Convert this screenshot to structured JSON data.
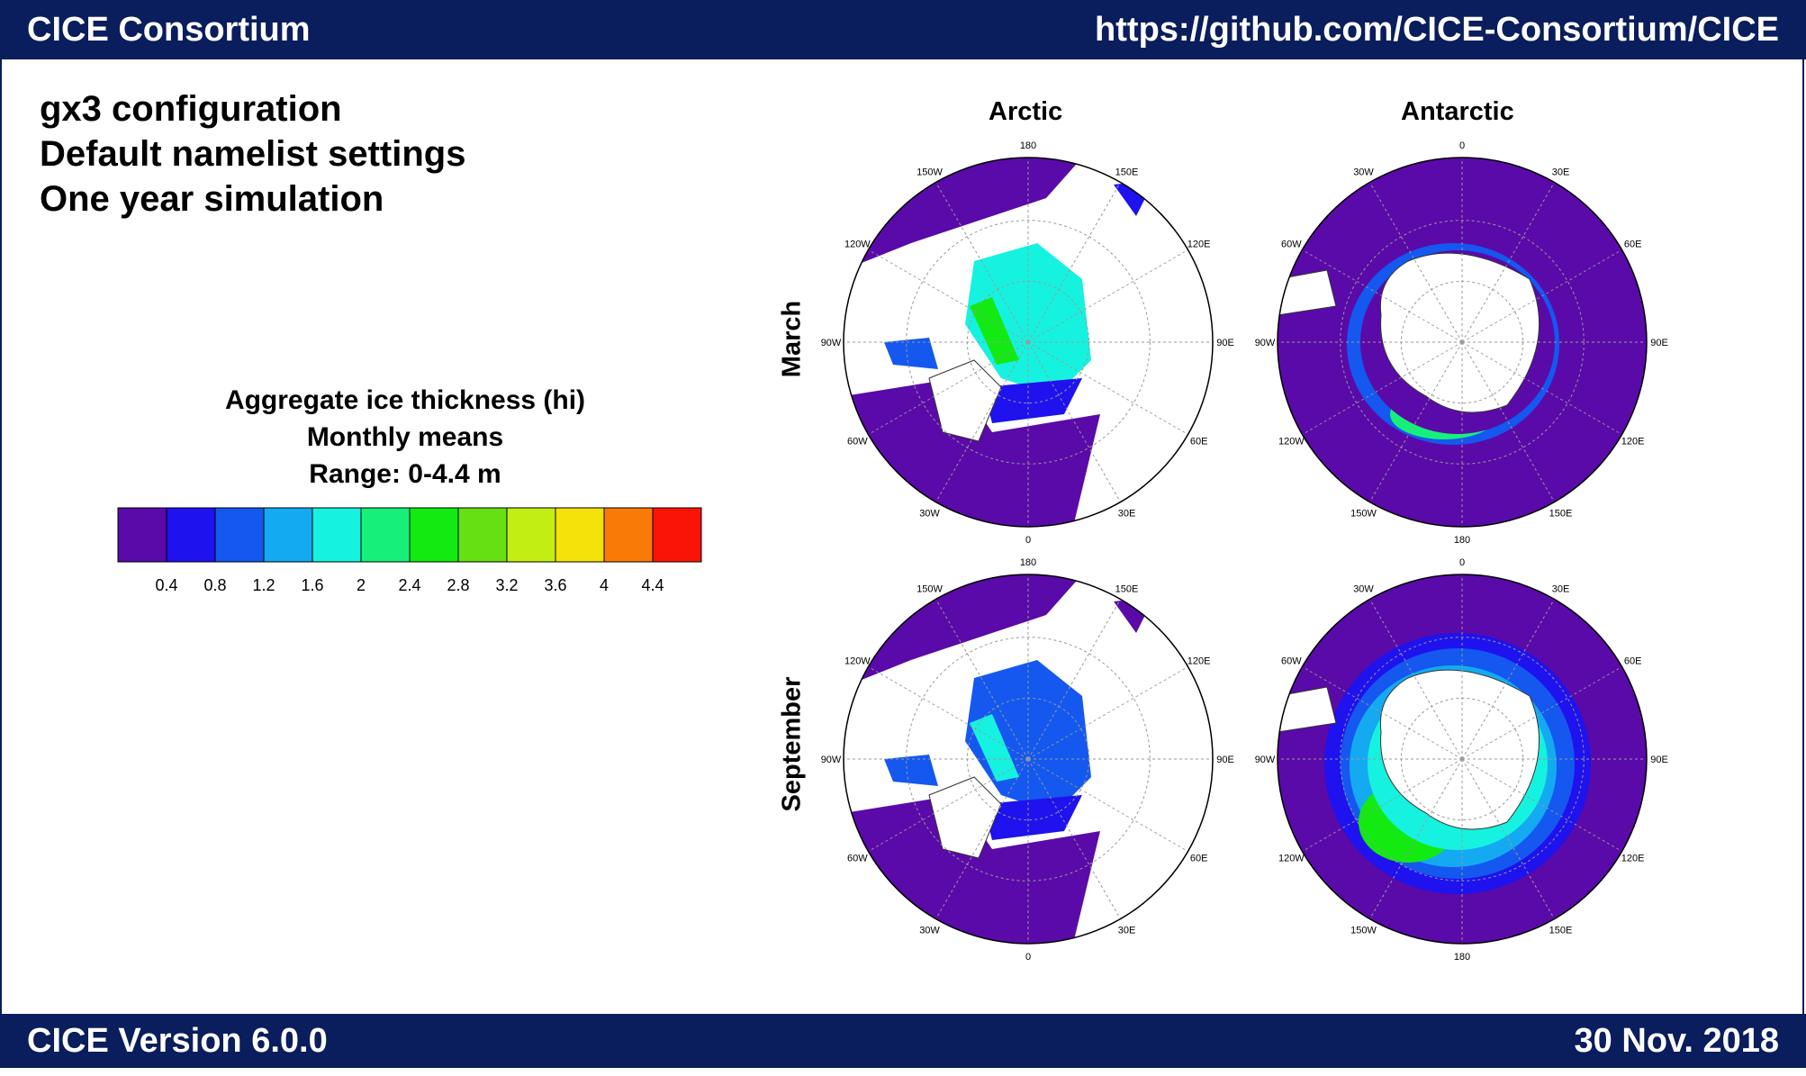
{
  "header": {
    "left": "CICE Consortium",
    "right": "https://github.com/CICE-Consortium/CICE"
  },
  "footer": {
    "left": "CICE Version 6.0.0",
    "right": "30 Nov. 2018"
  },
  "intro": [
    "gx3 configuration",
    "Default namelist settings",
    "One year simulation"
  ],
  "caption": [
    "Aggregate ice thickness (hi)",
    "Monthly means",
    "Range: 0-4.4 m"
  ],
  "colorbar": {
    "colors": [
      "#5a0aa8",
      "#1e12ee",
      "#1458f0",
      "#14aaf2",
      "#16f2e0",
      "#16f07a",
      "#12ea12",
      "#66e012",
      "#c2ee14",
      "#f4e20a",
      "#fa7a08",
      "#fa1408"
    ],
    "ticks": [
      "0.4",
      "0.8",
      "1.2",
      "1.6",
      "2",
      "2.4",
      "2.8",
      "3.2",
      "3.6",
      "4",
      "4.4"
    ]
  },
  "panels": {
    "columns": [
      "Arctic",
      "Antarctic"
    ],
    "rows": [
      "March",
      "September"
    ],
    "arctic_labels": [
      "180",
      "150E",
      "120E",
      "90E",
      "60E",
      "30E",
      "0",
      "30W",
      "60W",
      "90W",
      "120W",
      "150W"
    ],
    "antarctic_labels": [
      "0",
      "30E",
      "60E",
      "90E",
      "120E",
      "150E",
      "180",
      "150W",
      "120W",
      "90W",
      "60W",
      "30W"
    ]
  }
}
